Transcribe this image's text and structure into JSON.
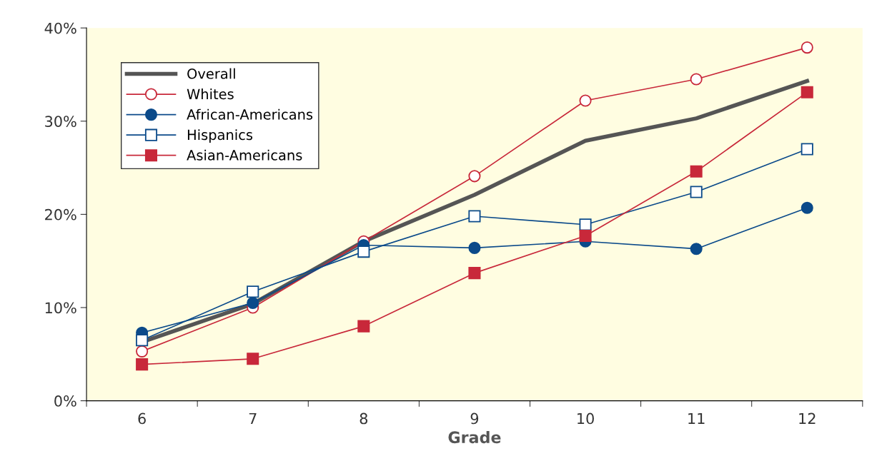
{
  "chart_data": {
    "type": "line",
    "xlabel": "Grade",
    "categories": [
      "6",
      "7",
      "8",
      "9",
      "10",
      "11",
      "12"
    ],
    "ylim": [
      0,
      40
    ],
    "yticks": [
      {
        "value": 0,
        "label": "0%"
      },
      {
        "value": 10,
        "label": "10%"
      },
      {
        "value": 20,
        "label": "20%"
      },
      {
        "value": 30,
        "label": "30%"
      },
      {
        "value": 40,
        "label": "40%"
      }
    ],
    "grid": false,
    "legend": "top left",
    "series": [
      {
        "name": "Overall",
        "color": "#555555",
        "marker": "none",
        "values": [
          6.3,
          10.4,
          17.1,
          22.1,
          27.9,
          30.3,
          34.3
        ]
      },
      {
        "name": "Whites",
        "color": "#c8283a",
        "marker": "circle",
        "values": [
          5.3,
          10.0,
          17.1,
          24.1,
          32.2,
          34.5,
          37.9
        ]
      },
      {
        "name": "African-Americans",
        "color": "#0b4a8a",
        "marker": "circle",
        "values": [
          7.3,
          10.5,
          16.7,
          16.4,
          17.1,
          16.3,
          20.7
        ]
      },
      {
        "name": "Hispanics",
        "color": "#0b4a8a",
        "marker": "square",
        "values": [
          6.5,
          11.7,
          16.0,
          19.8,
          18.9,
          22.4,
          27.0
        ]
      },
      {
        "name": "Asian-Americans",
        "color": "#c8283a",
        "marker": "square",
        "values": [
          3.9,
          4.5,
          8.0,
          13.7,
          17.7,
          24.6,
          33.1
        ]
      }
    ]
  }
}
